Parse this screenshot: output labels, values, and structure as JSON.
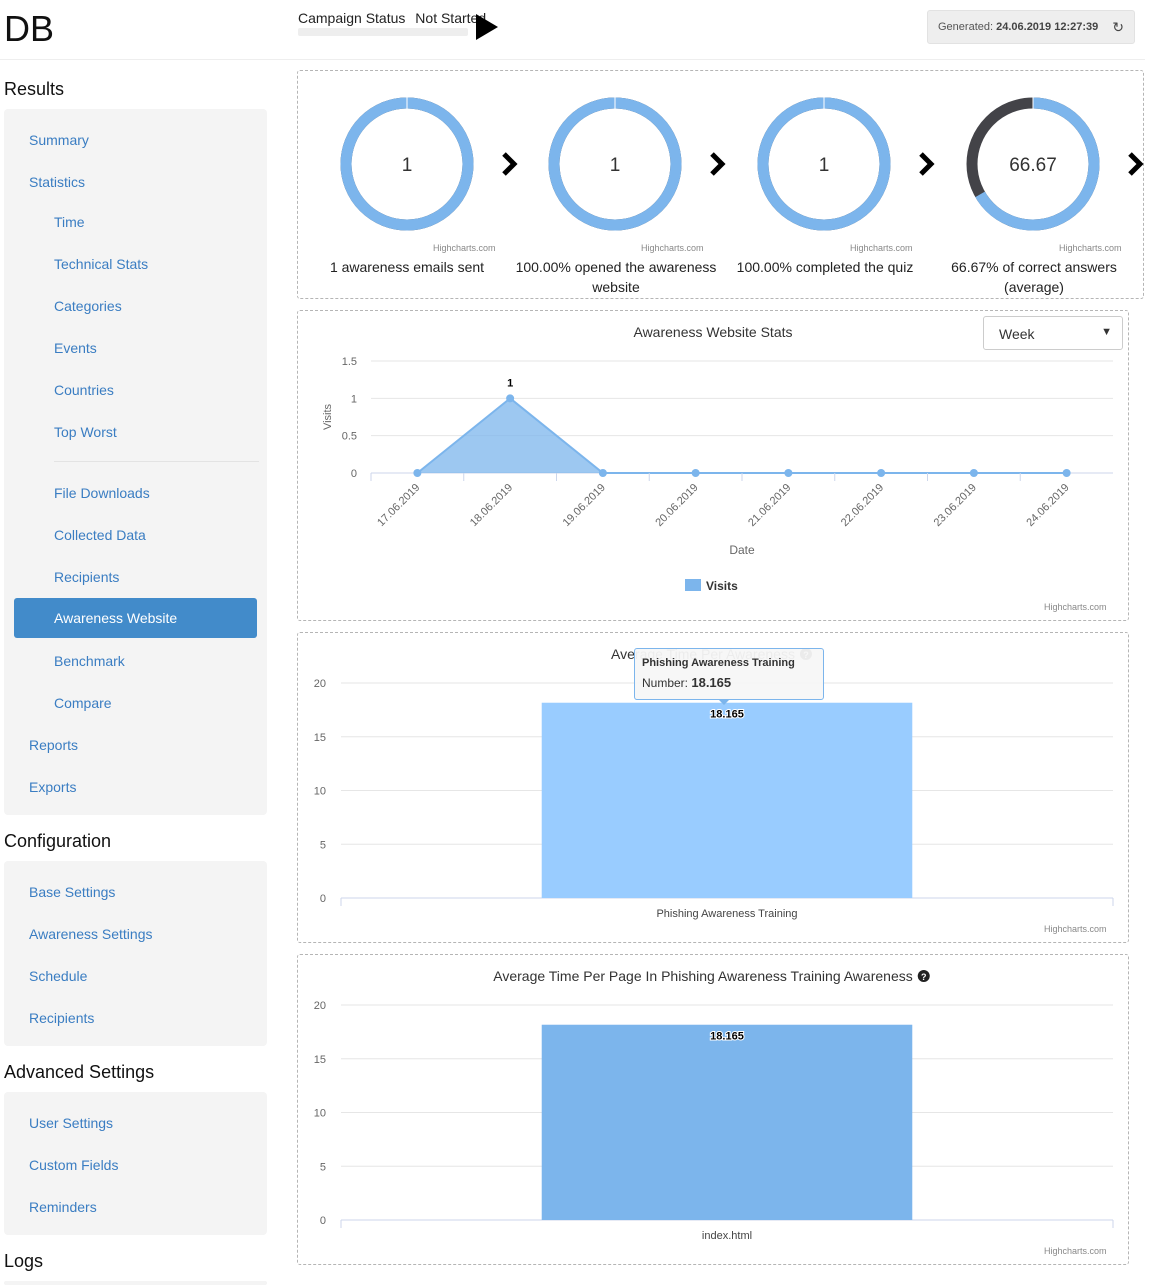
{
  "header": {
    "app_title": "DB",
    "campaign_status_label": "Campaign Status",
    "campaign_status_value": "Not Started",
    "generated_label": "Generated:",
    "generated_value": "24.06.2019 12:27:39"
  },
  "sidebar": {
    "results_title": "Results",
    "results_items": [
      "Summary",
      "Statistics",
      "Time",
      "Technical Stats",
      "Categories",
      "Events",
      "Countries",
      "Top Worst",
      "File Downloads",
      "Collected Data",
      "Recipients",
      "Awareness Website",
      "Benchmark",
      "Compare",
      "Reports",
      "Exports"
    ],
    "active_item": "Awareness Website",
    "configuration_title": "Configuration",
    "configuration_items": [
      "Base Settings",
      "Awareness Settings",
      "Schedule",
      "Recipients"
    ],
    "advanced_title": "Advanced Settings",
    "advanced_items": [
      "User Settings",
      "Custom Fields",
      "Reminders"
    ],
    "logs_title": "Logs"
  },
  "credit": "Highcharts.com",
  "kpis": [
    {
      "value": "1",
      "percent": 100,
      "caption": "1 awareness emails sent"
    },
    {
      "value": "1",
      "percent": 100,
      "caption": "100.00% opened the awareness website"
    },
    {
      "value": "1",
      "percent": 100,
      "caption": "100.00% completed the quiz"
    },
    {
      "value": "66.67",
      "percent": 66.67,
      "caption": "66.67% of correct answers (average)"
    }
  ],
  "colors": {
    "accent": "#7cb5ec",
    "bar_light": "#99ccff",
    "active_nav": "#428bca",
    "donut_dark": "#434348"
  },
  "period_select": {
    "value": "Week"
  },
  "chart_data": [
    {
      "type": "area",
      "title": "Awareness Website Stats",
      "xlabel": "Date",
      "ylabel": "Visits",
      "x": [
        "17.06.2019",
        "18.06.2019",
        "19.06.2019",
        "20.06.2019",
        "21.06.2019",
        "22.06.2019",
        "23.06.2019",
        "24.06.2019"
      ],
      "series": [
        {
          "name": "Visits",
          "values": [
            0,
            1,
            0,
            0,
            0,
            0,
            0,
            0
          ]
        }
      ],
      "data_labels": [
        "",
        "1",
        "",
        "",
        "",
        "",
        "",
        ""
      ],
      "yticks": [
        "0",
        "0.5",
        "1",
        "1.5"
      ],
      "ylim": [
        0,
        1.5
      ],
      "legend": "bottom-center",
      "grid": true
    },
    {
      "type": "bar",
      "title": "Average Time Per Awareness",
      "categories": [
        "Phishing Awareness Training"
      ],
      "values": [
        18.165
      ],
      "yticks": [
        "0",
        "5",
        "10",
        "15",
        "20"
      ],
      "ylim": [
        0,
        20
      ],
      "grid": true,
      "tooltip": {
        "title": "Phishing Awareness Training",
        "label": "Number:",
        "value": "18.165"
      }
    },
    {
      "type": "bar",
      "title": "Average Time Per Page In Phishing Awareness Training Awareness",
      "categories": [
        "index.html"
      ],
      "values": [
        18.165
      ],
      "yticks": [
        "0",
        "5",
        "10",
        "15",
        "20"
      ],
      "ylim": [
        0,
        20
      ],
      "grid": true
    }
  ]
}
